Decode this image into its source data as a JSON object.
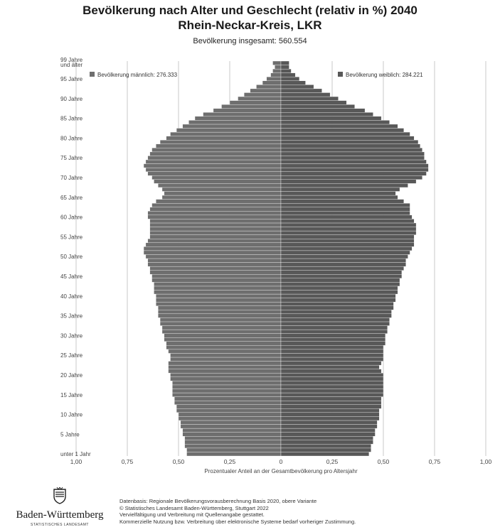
{
  "header": {
    "title_line1": "Bevölkerung nach Alter und Geschlecht (relativ in %) 2040",
    "title_line2": "Rhein-Neckar-Kreis, LKR",
    "subtitle": "Bevölkerung insgesamt: 560.554"
  },
  "colors": {
    "male": "#6e6e6e",
    "female": "#585858",
    "gridline": "#c8c8c8",
    "separator": "#ffffff"
  },
  "chart_data": {
    "type": "bar",
    "orientation": "horizontal-population-pyramid",
    "title": "Bevölkerung nach Alter und Geschlecht (relativ in %) 2040",
    "subtitle": "Bevölkerung insgesamt: 560.554",
    "xlabel": "Prozentualer Anteil an der Gesamtbevölkerung pro Altersjahr",
    "x_ticks": [
      "1,00",
      "0,75",
      "0,50",
      "0,25",
      "0",
      "0,25",
      "0,50",
      "0,75",
      "1,00"
    ],
    "xlim": [
      -1.0,
      1.0
    ],
    "y_tick_labels": [
      "unter 1 Jahr",
      "5 Jahre",
      "10 Jahre",
      "15 Jahre",
      "20 Jahre",
      "25 Jahre",
      "30 Jahre",
      "35 Jahre",
      "40 Jahre",
      "45 Jahre",
      "50 Jahre",
      "55 Jahre",
      "60 Jahre",
      "65 Jahre",
      "70 Jahre",
      "75 Jahre",
      "80 Jahre",
      "85 Jahre",
      "90 Jahre",
      "95 Jahre",
      "99 Jahre und älter"
    ],
    "y_tick_ages": [
      0,
      5,
      10,
      15,
      20,
      25,
      30,
      35,
      40,
      45,
      50,
      55,
      60,
      65,
      70,
      75,
      80,
      85,
      90,
      95,
      99
    ],
    "ages": [
      0,
      1,
      2,
      3,
      4,
      5,
      6,
      7,
      8,
      9,
      10,
      11,
      12,
      13,
      14,
      15,
      16,
      17,
      18,
      19,
      20,
      21,
      22,
      23,
      24,
      25,
      26,
      27,
      28,
      29,
      30,
      31,
      32,
      33,
      34,
      35,
      36,
      37,
      38,
      39,
      40,
      41,
      42,
      43,
      44,
      45,
      46,
      47,
      48,
      49,
      50,
      51,
      52,
      53,
      54,
      55,
      56,
      57,
      58,
      59,
      60,
      61,
      62,
      63,
      64,
      65,
      66,
      67,
      68,
      69,
      70,
      71,
      72,
      73,
      74,
      75,
      76,
      77,
      78,
      79,
      80,
      81,
      82,
      83,
      84,
      85,
      86,
      87,
      88,
      89,
      90,
      91,
      92,
      93,
      94,
      95,
      96,
      97,
      98,
      99
    ],
    "series": [
      {
        "name": "Bevölkerung männlich: 276.333",
        "values": [
          0.46,
          0.46,
          0.47,
          0.47,
          0.47,
          0.48,
          0.48,
          0.49,
          0.49,
          0.5,
          0.5,
          0.51,
          0.51,
          0.52,
          0.52,
          0.53,
          0.53,
          0.53,
          0.53,
          0.54,
          0.54,
          0.55,
          0.55,
          0.55,
          0.54,
          0.54,
          0.55,
          0.56,
          0.56,
          0.57,
          0.57,
          0.58,
          0.58,
          0.59,
          0.59,
          0.6,
          0.6,
          0.6,
          0.61,
          0.61,
          0.61,
          0.62,
          0.62,
          0.62,
          0.63,
          0.63,
          0.64,
          0.64,
          0.65,
          0.65,
          0.66,
          0.67,
          0.67,
          0.66,
          0.65,
          0.64,
          0.64,
          0.64,
          0.64,
          0.64,
          0.65,
          0.65,
          0.64,
          0.63,
          0.61,
          0.58,
          0.57,
          0.58,
          0.6,
          0.62,
          0.63,
          0.65,
          0.66,
          0.67,
          0.66,
          0.65,
          0.64,
          0.63,
          0.61,
          0.59,
          0.56,
          0.54,
          0.51,
          0.48,
          0.45,
          0.42,
          0.38,
          0.33,
          0.29,
          0.25,
          0.21,
          0.18,
          0.15,
          0.12,
          0.09,
          0.07,
          0.05,
          0.04,
          0.03,
          0.04
        ]
      },
      {
        "name": "Bevölkerung weiblich: 284.221",
        "values": [
          0.43,
          0.44,
          0.44,
          0.45,
          0.45,
          0.46,
          0.46,
          0.47,
          0.47,
          0.48,
          0.48,
          0.48,
          0.49,
          0.49,
          0.49,
          0.5,
          0.5,
          0.5,
          0.5,
          0.5,
          0.5,
          0.49,
          0.48,
          0.49,
          0.5,
          0.5,
          0.5,
          0.5,
          0.51,
          0.51,
          0.51,
          0.52,
          0.52,
          0.53,
          0.53,
          0.54,
          0.54,
          0.55,
          0.55,
          0.56,
          0.56,
          0.57,
          0.57,
          0.58,
          0.58,
          0.59,
          0.59,
          0.6,
          0.61,
          0.61,
          0.62,
          0.63,
          0.64,
          0.65,
          0.65,
          0.65,
          0.66,
          0.66,
          0.66,
          0.65,
          0.64,
          0.63,
          0.63,
          0.63,
          0.6,
          0.57,
          0.56,
          0.58,
          0.62,
          0.66,
          0.69,
          0.71,
          0.72,
          0.72,
          0.71,
          0.7,
          0.7,
          0.69,
          0.68,
          0.67,
          0.65,
          0.63,
          0.6,
          0.57,
          0.53,
          0.49,
          0.45,
          0.41,
          0.36,
          0.32,
          0.28,
          0.24,
          0.2,
          0.16,
          0.12,
          0.09,
          0.07,
          0.05,
          0.04,
          0.04
        ]
      }
    ],
    "grid": true,
    "legend": [
      "top-left",
      "top-right"
    ]
  },
  "footer": {
    "logo_name": "Baden-Württemberg",
    "logo_sub": "STATISTISCHES LANDESAMT",
    "lines": [
      "Datenbasis: Regionale Bevölkerungsvorausberechnung Basis 2020, obere Variante",
      "© Statistisches Landesamt Baden-Württemberg, Stuttgart 2022",
      "Vervielfältigung und Verbreitung mit Quellenangabe gestattet.",
      "Kommerzielle Nutzung bzw. Verbreitung über elektronische Systeme bedarf vorheriger Zustimmung."
    ]
  }
}
